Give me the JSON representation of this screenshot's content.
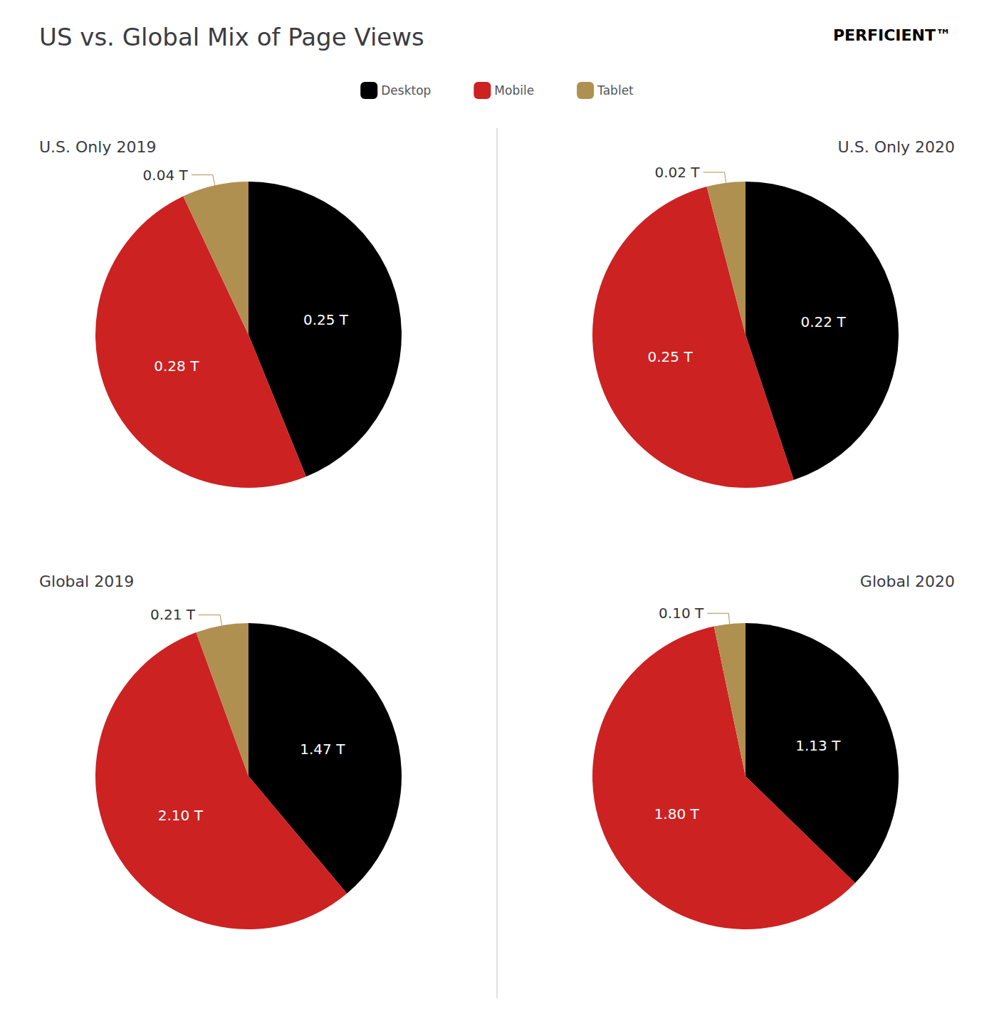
{
  "title": "US vs. Global Mix of Page Views",
  "annotations": [
    "PERFICIENT™"
  ],
  "chart_data": [
    {
      "type": "pie",
      "title": "U.S. Only 2019",
      "categories": [
        "Desktop",
        "Mobile",
        "Tablet"
      ],
      "values": [
        0.25,
        0.28,
        0.04
      ],
      "value_labels": [
        "0.25 T",
        "0.28 T",
        "0.04 T"
      ],
      "colors": [
        "#000000",
        "#cc2222",
        "#b09050"
      ],
      "data_labels": true,
      "legend": "top"
    },
    {
      "type": "pie",
      "title": "U.S. Only 2020",
      "categories": [
        "Desktop",
        "Mobile",
        "Tablet"
      ],
      "values": [
        0.22,
        0.25,
        0.02
      ],
      "value_labels": [
        "0.22 T",
        "0.25 T",
        "0.02 T"
      ],
      "colors": [
        "#000000",
        "#cc2222",
        "#b09050"
      ],
      "data_labels": true,
      "legend": "top"
    },
    {
      "type": "pie",
      "title": "Global 2019",
      "categories": [
        "Desktop",
        "Mobile",
        "Tablet"
      ],
      "values": [
        1.47,
        2.1,
        0.21
      ],
      "value_labels": [
        "1.47 T",
        "2.10 T",
        "0.21 T"
      ],
      "colors": [
        "#000000",
        "#cc2222",
        "#b09050"
      ],
      "data_labels": true,
      "legend": "top"
    },
    {
      "type": "pie",
      "title": "Global 2020",
      "categories": [
        "Desktop",
        "Mobile",
        "Tablet"
      ],
      "values": [
        1.13,
        1.8,
        0.1
      ],
      "value_labels": [
        "1.13 T",
        "1.80 T",
        "0.10 T"
      ],
      "colors": [
        "#000000",
        "#cc2222",
        "#b09050"
      ],
      "data_labels": true,
      "legend": "top"
    }
  ]
}
